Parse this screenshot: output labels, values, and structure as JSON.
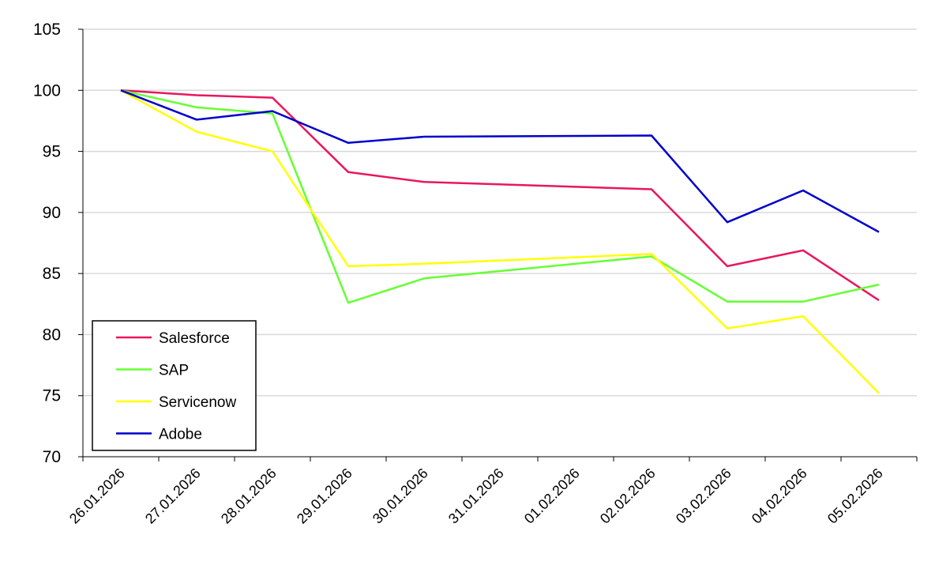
{
  "chart_data": {
    "type": "line",
    "title": "",
    "xlabel": "",
    "ylabel": "",
    "categories": [
      "26.01.2026",
      "27.01.2026",
      "28.01.2026",
      "29.01.2026",
      "30.01.2026",
      "31.01.2026",
      "01.02.2026",
      "02.02.2026",
      "03.02.2026",
      "04.02.2026",
      "05.02.2026"
    ],
    "ylim": [
      70,
      105
    ],
    "yticks": [
      70,
      75,
      80,
      85,
      90,
      95,
      100,
      105
    ],
    "grid": true,
    "legend_position": "bottom-left",
    "series": [
      {
        "name": "Salesforce",
        "color": "#e8175d",
        "values": [
          100,
          99.6,
          99.4,
          93.3,
          92.5,
          null,
          null,
          91.9,
          85.6,
          86.9,
          82.8
        ]
      },
      {
        "name": "SAP",
        "color": "#66ff33",
        "values": [
          100,
          98.6,
          98.1,
          82.6,
          84.6,
          null,
          null,
          86.4,
          82.7,
          82.7,
          84.1
        ]
      },
      {
        "name": "Servicenow",
        "color": "#ffff00",
        "values": [
          100,
          96.6,
          95.0,
          85.6,
          85.8,
          null,
          null,
          86.6,
          80.5,
          81.5,
          75.2
        ]
      },
      {
        "name": "Adobe",
        "color": "#0000cc",
        "values": [
          100,
          97.6,
          98.3,
          95.7,
          96.2,
          null,
          null,
          96.3,
          89.2,
          91.8,
          88.4
        ]
      }
    ]
  }
}
